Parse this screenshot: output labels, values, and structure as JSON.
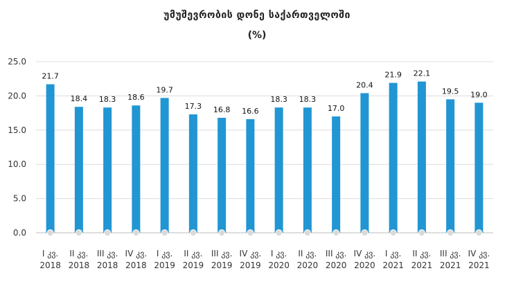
{
  "chart_data": {
    "type": "bar",
    "title": "უმუშევრობის დონე საქართველოში",
    "subtitle": "(%)",
    "categories": [
      [
        "I კვ.",
        "2018"
      ],
      [
        "II კვ.",
        "2018"
      ],
      [
        "III კვ.",
        "2018"
      ],
      [
        "IV კვ.",
        "2018"
      ],
      [
        "I კვ.",
        "2019"
      ],
      [
        "II კვ.",
        "2019"
      ],
      [
        "III კვ.",
        "2019"
      ],
      [
        "IV კვ.",
        "2019"
      ],
      [
        "I კვ.",
        "2020"
      ],
      [
        "II კვ.",
        "2020"
      ],
      [
        "III კვ.",
        "2020"
      ],
      [
        "IV კვ.",
        "2020"
      ],
      [
        "I კვ.",
        "2021"
      ],
      [
        "II კვ.",
        "2021"
      ],
      [
        "III კვ.",
        "2021"
      ],
      [
        "IV კვ.",
        "2021"
      ]
    ],
    "values": [
      21.7,
      18.4,
      18.3,
      18.6,
      19.7,
      17.3,
      16.8,
      16.6,
      18.3,
      18.3,
      17.0,
      20.4,
      21.9,
      22.1,
      19.5,
      19.0
    ],
    "value_labels": [
      "21.7",
      "18.4",
      "18.3",
      "18.6",
      "19.7",
      "17.3",
      "16.8",
      "16.6",
      "18.3",
      "18.3",
      "17.0",
      "20.4",
      "21.9",
      "22.1",
      "19.5",
      "19.0"
    ],
    "ylim": [
      0,
      25
    ],
    "yticks": [
      "0.0",
      "5.0",
      "10.0",
      "15.0",
      "20.0",
      "25.0"
    ],
    "grid": true,
    "legend": "none",
    "bar_color": "#2196d3",
    "grid_color": "#dcdcdc",
    "marker_color": "#d9d9d9"
  }
}
